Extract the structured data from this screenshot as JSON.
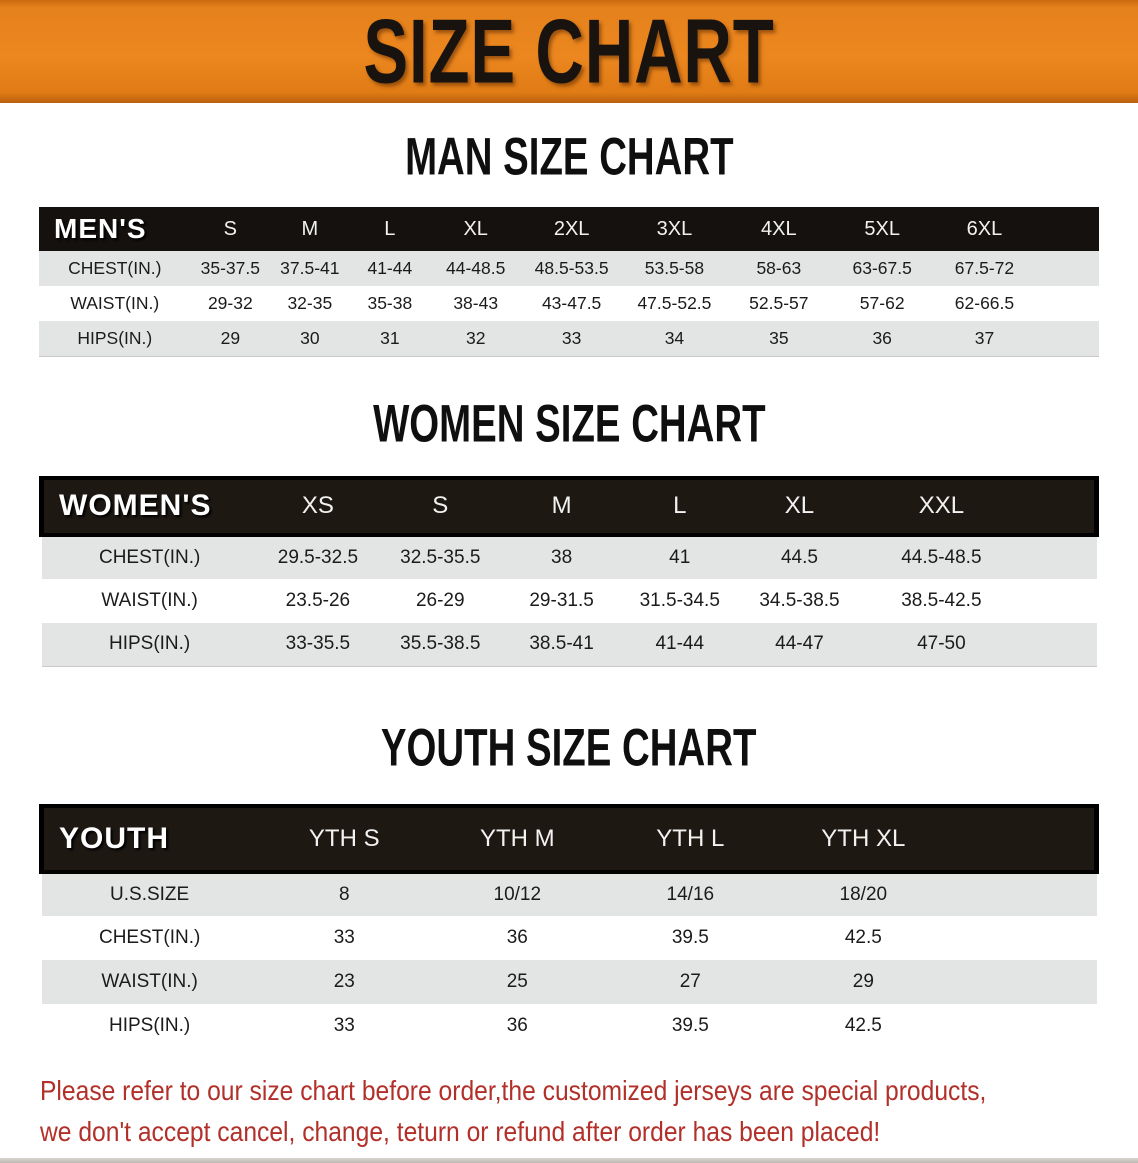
{
  "banner": {
    "title": "SIZE CHART"
  },
  "sections": [
    {
      "heading": "MAN SIZE CHART",
      "header_label": "MEN'S",
      "columns": [
        "S",
        "M",
        "L",
        "XL",
        "2XL",
        "3XL",
        "4XL",
        "5XL",
        "6XL"
      ],
      "rows": [
        {
          "label": "CHEST(IN.)",
          "values": [
            "35-37.5",
            "37.5-41",
            "41-44",
            "44-48.5",
            "48.5-53.5",
            "53.5-58",
            "58-63",
            "63-67.5",
            "67.5-72"
          ]
        },
        {
          "label": "WAIST(IN.)",
          "values": [
            "29-32",
            "32-35",
            "35-38",
            "38-43",
            "43-47.5",
            "47.5-52.5",
            "52.5-57",
            "57-62",
            "62-66.5"
          ]
        },
        {
          "label": "HIPS(IN.)",
          "values": [
            "29",
            "30",
            "31",
            "32",
            "33",
            "34",
            "35",
            "36",
            "37"
          ]
        }
      ]
    },
    {
      "heading": "WOMEN SIZE CHART",
      "header_label": "WOMEN'S",
      "columns": [
        "XS",
        "S",
        "M",
        "L",
        "XL",
        "XXL"
      ],
      "rows": [
        {
          "label": "CHEST(IN.)",
          "values": [
            "29.5-32.5",
            "32.5-35.5",
            "38",
            "41",
            "44.5",
            "44.5-48.5"
          ]
        },
        {
          "label": "WAIST(IN.)",
          "values": [
            "23.5-26",
            "26-29",
            "29-31.5",
            "31.5-34.5",
            "34.5-38.5",
            "38.5-42.5"
          ]
        },
        {
          "label": "HIPS(IN.)",
          "values": [
            "33-35.5",
            "35.5-38.5",
            "38.5-41",
            "41-44",
            "44-47",
            "47-50"
          ]
        }
      ]
    },
    {
      "heading": "YOUTH SIZE CHART",
      "header_label": "YOUTH",
      "columns": [
        "YTH S",
        "YTH M",
        "YTH L",
        "YTH XL"
      ],
      "rows": [
        {
          "label": "U.S.SIZE",
          "values": [
            "8",
            "10/12",
            "14/16",
            "18/20"
          ]
        },
        {
          "label": "CHEST(IN.)",
          "values": [
            "33",
            "36",
            "39.5",
            "42.5"
          ]
        },
        {
          "label": "WAIST(IN.)",
          "values": [
            "23",
            "25",
            "27",
            "29"
          ]
        },
        {
          "label": "HIPS(IN.)",
          "values": [
            "33",
            "36",
            "39.5",
            "42.5"
          ]
        }
      ]
    }
  ],
  "footer_note": {
    "line1": "Please refer to our size chart before order,the customized jerseys are special products,",
    "line2": "we don't accept cancel, change, teturn or refund after order has been placed!"
  },
  "colors": {
    "banner_orange": "#E5811C",
    "table_header_black": "#15110E",
    "row_gray": "#E3E5E4",
    "note_red": "#B2302A"
  }
}
